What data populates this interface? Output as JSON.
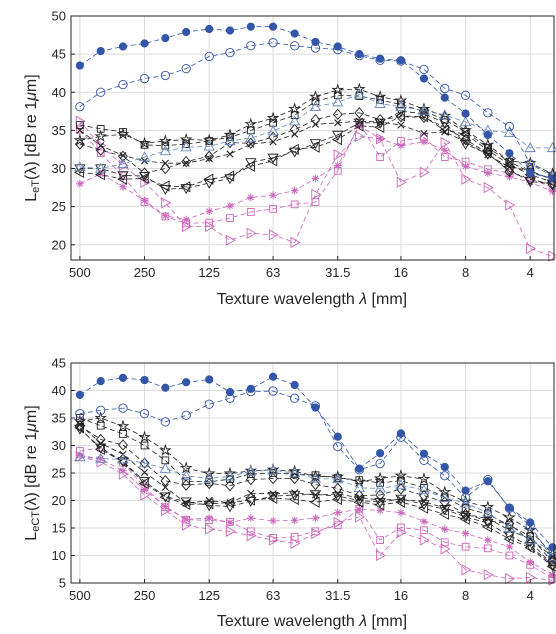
{
  "chart_data": [
    {
      "type": "line",
      "xlabel": "Texture wavelength",
      "xlabel_sym": "λ",
      "xlabel_unit": "[mm]",
      "ylabel_main": "L",
      "ylabel_sub": "eT",
      "ylabel_arg": "(λ) [dB re 1",
      "ylabel_mu": "μ",
      "ylabel_unit": "m]",
      "x_scale": "log, reversed",
      "xlim": [
        550,
        3.1
      ],
      "ylim": [
        18,
        50
      ],
      "grid": true,
      "xticks": [
        500,
        250,
        125,
        63,
        31.5,
        16,
        8,
        4
      ],
      "xtick_labels": [
        "500",
        "250",
        "125",
        "63",
        "31.5",
        "16",
        "8",
        "4"
      ],
      "yticks": [
        20,
        25,
        30,
        35,
        40,
        45,
        50
      ],
      "ytick_labels": [
        "20",
        "25",
        "30",
        "35",
        "40",
        "45",
        "50"
      ],
      "x": [
        500,
        400,
        315,
        250,
        200,
        160,
        125,
        100,
        80,
        63,
        50,
        40,
        31.5,
        25,
        20,
        16,
        12.5,
        10,
        8,
        6.3,
        5,
        4,
        3.15
      ],
      "series": [
        {
          "marker": "filled-circle",
          "color": "#3355AA",
          "values": [
            43.5,
            45.4,
            46.0,
            46.4,
            47.1,
            47.9,
            48.3,
            48.1,
            48.6,
            48.6,
            47.7,
            46.6,
            46.0,
            45.0,
            44.4,
            44.2,
            41.8,
            39.3,
            37.2,
            34.4,
            32.0,
            29.4,
            28.7
          ]
        },
        {
          "marker": "open-circle",
          "color": "#3355AA",
          "values": [
            38.1,
            40.0,
            41.0,
            41.8,
            42.2,
            43.1,
            44.7,
            45.2,
            46.1,
            46.5,
            46.1,
            45.8,
            45.6,
            44.8,
            44.2,
            44.1,
            43.0,
            40.5,
            39.6,
            37.3,
            35.5,
            30.6,
            29.0
          ]
        },
        {
          "marker": "open-triangle-up",
          "color": "#6688BB",
          "values": [
            30.2,
            30.0,
            30.6,
            31.5,
            32.3,
            32.8,
            32.9,
            33.6,
            34.0,
            34.9,
            36.2,
            38.1,
            38.7,
            39.7,
            38.5,
            38.1,
            37.6,
            37.0,
            36.1,
            35.0,
            34.7,
            32.7,
            32.7
          ]
        },
        {
          "marker": "open-star",
          "color": "#222222",
          "values": [
            33.7,
            34.2,
            34.5,
            33.3,
            33.6,
            33.8,
            33.7,
            34.4,
            35.8,
            36.6,
            37.8,
            39.4,
            40.3,
            40.4,
            39.4,
            38.9,
            37.8,
            36.9,
            35.0,
            33.1,
            31.0,
            30.7,
            29.3
          ]
        },
        {
          "marker": "open-square",
          "color": "#222222",
          "values": [
            35.7,
            35.2,
            34.8,
            33.1,
            33.0,
            33.2,
            33.6,
            34.1,
            35.0,
            36.0,
            37.0,
            38.8,
            39.6,
            39.5,
            39.0,
            38.4,
            37.5,
            36.4,
            34.8,
            32.7,
            30.9,
            29.5,
            28.7
          ]
        },
        {
          "marker": "open-diamond",
          "color": "#222222",
          "values": [
            33.2,
            32.4,
            31.6,
            29.4,
            30.0,
            30.9,
            31.6,
            33.4,
            33.3,
            34.1,
            35.1,
            36.4,
            37.1,
            37.3,
            36.4,
            36.8,
            36.7,
            35.4,
            33.8,
            32.0,
            29.6,
            28.6,
            27.9
          ]
        },
        {
          "marker": "open-triangle-down",
          "color": "#222222",
          "values": [
            30.0,
            30.0,
            29.1,
            29.0,
            27.3,
            27.4,
            28.1,
            28.7,
            30.8,
            31.4,
            32.2,
            33.3,
            34.4,
            36.0,
            36.0,
            37.5,
            37.2,
            36.0,
            33.2,
            31.9,
            29.8,
            28.3,
            28.0
          ]
        },
        {
          "marker": "open-triangle-left",
          "color": "#222222",
          "values": [
            29.5,
            29.2,
            28.6,
            28.7,
            27.7,
            27.6,
            28.6,
            29.0,
            30.3,
            31.0,
            32.5,
            32.8,
            33.8,
            35.6,
            35.4,
            36.9,
            36.8,
            35.0,
            34.5,
            32.4,
            30.5,
            29.2,
            28.2
          ]
        },
        {
          "marker": "x",
          "color": "#222222",
          "values": [
            35.0,
            33.0,
            31.7,
            31.0,
            30.7,
            30.7,
            31.3,
            31.9,
            33.2,
            33.5,
            34.5,
            35.8,
            36.0,
            36.2,
            36.1,
            35.7,
            34.6,
            34.8,
            33.5,
            31.8,
            30.2,
            29.7,
            28.5
          ]
        },
        {
          "marker": "open-square",
          "color": "#CC66BB",
          "values": [
            35.1,
            32.0,
            29.0,
            25.6,
            23.7,
            22.8,
            22.9,
            23.5,
            24.3,
            24.7,
            25.3,
            25.6,
            29.7,
            36.0,
            31.5,
            33.6,
            34.1,
            31.5,
            30.9,
            29.9,
            29.4,
            28.7,
            27.5
          ]
        },
        {
          "marker": "asterisk",
          "color": "#CC66BB",
          "values": [
            28.0,
            29.3,
            27.6,
            25.8,
            23.8,
            23.3,
            24.4,
            25.1,
            26.2,
            26.5,
            27.1,
            28.7,
            30.4,
            35.6,
            33.9,
            33.0,
            33.5,
            32.4,
            30.3,
            29.4,
            28.9,
            28.2,
            27.0
          ]
        },
        {
          "marker": "open-triangle-right",
          "color": "#CC66BB",
          "values": [
            36.2,
            33.0,
            30.4,
            28.2,
            25.5,
            22.4,
            22.4,
            20.6,
            21.5,
            21.3,
            20.3,
            26.6,
            31.8,
            34.2,
            33.9,
            28.2,
            29.5,
            33.4,
            28.6,
            27.5,
            25.2,
            19.5,
            18.5
          ]
        }
      ]
    },
    {
      "type": "line",
      "xlabel": "Texture wavelength",
      "xlabel_sym": "λ",
      "xlabel_unit": "[mm]",
      "ylabel_main": "L",
      "ylabel_sub": "eCT",
      "ylabel_arg": "(λ) [dB re 1",
      "ylabel_mu": "μ",
      "ylabel_unit": "m]",
      "x_scale": "log, reversed",
      "xlim": [
        550,
        3.1
      ],
      "ylim": [
        5,
        45
      ],
      "grid": true,
      "xticks": [
        500,
        250,
        125,
        63,
        31.5,
        16,
        8,
        4
      ],
      "xtick_labels": [
        "500",
        "250",
        "125",
        "63",
        "31.5",
        "16",
        "8",
        "4"
      ],
      "yticks": [
        5,
        10,
        15,
        20,
        25,
        30,
        35,
        40,
        45
      ],
      "ytick_labels": [
        "5",
        "10",
        "15",
        "20",
        "25",
        "30",
        "35",
        "40",
        "45"
      ],
      "x": [
        500,
        400,
        315,
        250,
        200,
        160,
        125,
        100,
        80,
        63,
        50,
        40,
        31.5,
        25,
        20,
        16,
        12.5,
        10,
        8,
        6.3,
        5,
        4,
        3.15
      ],
      "series": [
        {
          "marker": "filled-circle",
          "color": "#3355AA",
          "values": [
            39.2,
            41.7,
            42.3,
            41.9,
            40.5,
            41.5,
            42.0,
            39.7,
            40.3,
            42.5,
            41.0,
            36.9,
            31.6,
            25.8,
            28.6,
            32.2,
            28.5,
            26.1,
            21.8,
            23.5,
            18.7,
            16.0,
            11.5
          ]
        },
        {
          "marker": "open-circle",
          "color": "#3355AA",
          "values": [
            35.8,
            36.4,
            36.8,
            35.8,
            34.3,
            35.5,
            37.5,
            38.6,
            39.8,
            39.9,
            38.6,
            37.2,
            29.8,
            25.6,
            26.7,
            31.5,
            27.3,
            24.5,
            20.5,
            23.8,
            18.6,
            15.4,
            9.5
          ]
        },
        {
          "marker": "open-triangle-up",
          "color": "#6688BB",
          "values": [
            27.9,
            27.6,
            27.5,
            26.8,
            25.8,
            24.5,
            24.0,
            24.4,
            25.3,
            25.5,
            25.0,
            24.0,
            23.9,
            22.3,
            22.2,
            22.8,
            21.9,
            20.5,
            19.5,
            17.8,
            15.0,
            12.8,
            11.0
          ]
        },
        {
          "marker": "open-star",
          "color": "#222222",
          "values": [
            34.4,
            35.0,
            33.5,
            31.5,
            29.1,
            25.9,
            24.9,
            24.9,
            25.4,
            25.6,
            25.3,
            24.4,
            24.3,
            23.4,
            24.0,
            24.5,
            23.9,
            21.5,
            19.8,
            18.8,
            16.9,
            14.6,
            10.3
          ]
        },
        {
          "marker": "open-square",
          "color": "#222222",
          "values": [
            35.0,
            33.6,
            32.1,
            30.0,
            27.3,
            23.5,
            23.4,
            23.9,
            24.8,
            25.0,
            24.8,
            24.6,
            24.1,
            23.7,
            23.2,
            23.6,
            22.3,
            20.6,
            18.6,
            17.5,
            15.5,
            13.5,
            8.8
          ]
        },
        {
          "marker": "open-diamond",
          "color": "#222222",
          "values": [
            33.6,
            31.1,
            30.1,
            26.8,
            23.6,
            22.8,
            23.1,
            22.7,
            23.8,
            24.0,
            24.0,
            22.9,
            22.2,
            20.9,
            21.0,
            22.1,
            20.9,
            19.7,
            17.5,
            16.3,
            15.8,
            12.6,
            8.2
          ]
        },
        {
          "marker": "open-triangle-down",
          "color": "#222222",
          "values": [
            33.0,
            29.6,
            27.1,
            23.5,
            20.7,
            19.8,
            19.1,
            18.9,
            19.9,
            20.8,
            21.0,
            21.1,
            20.8,
            20.0,
            19.7,
            20.3,
            19.3,
            18.4,
            17.0,
            15.9,
            13.6,
            11.7,
            8.3
          ]
        },
        {
          "marker": "open-triangle-left",
          "color": "#222222",
          "values": [
            33.2,
            29.3,
            27.0,
            23.1,
            20.6,
            19.3,
            19.4,
            19.6,
            20.1,
            20.4,
            20.2,
            19.7,
            20.2,
            19.7,
            19.2,
            19.7,
            18.6,
            17.5,
            16.6,
            15.2,
            13.0,
            11.4,
            8.0
          ]
        },
        {
          "marker": "x",
          "color": "#222222",
          "values": [
            33.8,
            30.4,
            28.4,
            25.1,
            22.4,
            19.5,
            20.0,
            19.6,
            21.3,
            21.2,
            21.4,
            21.0,
            21.2,
            20.5,
            20.1,
            20.2,
            19.8,
            18.6,
            17.5,
            16.7,
            14.6,
            13.0,
            9.8
          ]
        },
        {
          "marker": "open-square",
          "color": "#CC66BB",
          "values": [
            29.0,
            29.6,
            26.9,
            22.4,
            18.8,
            16.5,
            16.4,
            16.1,
            14.4,
            13.2,
            13.4,
            14.4,
            15.5,
            18.5,
            12.8,
            15.1,
            14.6,
            12.4,
            11.6,
            11.3,
            10.0,
            8.3,
            5.8
          ]
        },
        {
          "marker": "asterisk",
          "color": "#CC66BB",
          "values": [
            28.2,
            27.6,
            25.4,
            22.0,
            18.9,
            16.6,
            16.8,
            16.0,
            16.8,
            16.3,
            16.4,
            16.8,
            17.8,
            18.4,
            18.2,
            17.8,
            16.2,
            14.8,
            14.0,
            12.8,
            11.6,
            8.8,
            6.5
          ]
        },
        {
          "marker": "open-triangle-right",
          "color": "#CC66BB",
          "values": [
            28.0,
            27.0,
            24.8,
            21.0,
            18.2,
            15.5,
            14.8,
            14.4,
            13.6,
            12.8,
            12.2,
            14.0,
            16.0,
            17.0,
            10.0,
            14.2,
            12.8,
            11.2,
            7.4,
            6.5,
            5.8,
            6.0,
            5.5
          ]
        }
      ]
    }
  ]
}
